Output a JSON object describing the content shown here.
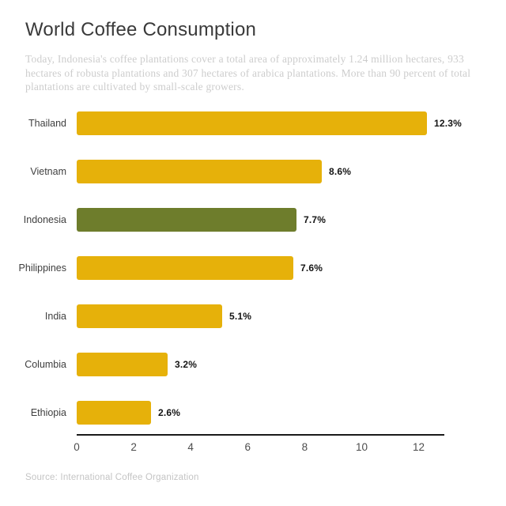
{
  "header": {
    "title": "World Coffee Consumption",
    "subtitle": "Today, Indonesia's coffee plantations cover a total area of approximately 1.24 million hectares, 933 hectares of robusta plantations and 307 hectares of arabica plantations. More than 90 percent of total plantations are cultivated by small-scale growers."
  },
  "chart_data": {
    "type": "bar",
    "orientation": "horizontal",
    "title": "World Coffee Consumption",
    "categories": [
      "Thailand",
      "Vietnam",
      "Indonesia",
      "Philippines",
      "India",
      "Columbia",
      "Ethiopia"
    ],
    "values": [
      12.3,
      8.6,
      7.7,
      7.6,
      5.1,
      3.2,
      2.6
    ],
    "value_labels": [
      "12.3%",
      "8.6%",
      "7.7%",
      "7.6%",
      "5.1%",
      "3.2%",
      "2.6%"
    ],
    "bar_color": "#E6B10A",
    "highlight_category": "Indonesia",
    "highlight_color": "#6E7D2C",
    "x_ticks": [
      0,
      2,
      4,
      6,
      8,
      10,
      12
    ],
    "xlim": [
      0,
      12.9
    ],
    "xlabel": "",
    "ylabel": "",
    "grid": false,
    "legend": "none"
  },
  "footer": {
    "source": "Source: International Coffee Organization"
  }
}
